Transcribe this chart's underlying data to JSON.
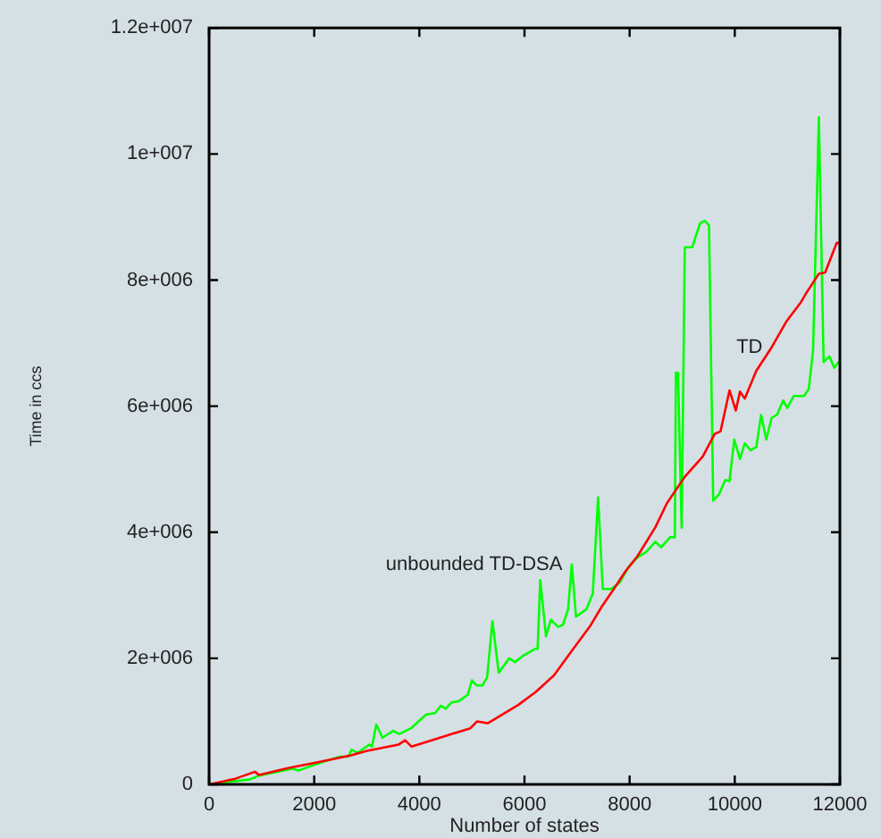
{
  "chart_data": {
    "type": "line",
    "xlabel": "Number of states",
    "ylabel": "Time in ccs",
    "xlim": [
      0,
      12000
    ],
    "xticks": [
      0,
      2000,
      4000,
      6000,
      8000,
      10000,
      12000
    ],
    "ylim": [
      0,
      12000000
    ],
    "yticks": [
      0,
      {
        "value": 2000000,
        "label": "2e+006"
      },
      {
        "value": 4000000,
        "label": "4e+006"
      },
      {
        "value": 6000000,
        "label": "6e+006"
      },
      {
        "value": 8000000,
        "label": "8e+006"
      },
      {
        "value": 10000000,
        "label": "1e+007"
      },
      {
        "value": 12000000,
        "label": "1.2e+007"
      }
    ],
    "legend": false,
    "series": [
      {
        "name": "TD",
        "color": "#ff0000",
        "x": [
          0,
          500,
          870,
          950,
          1500,
          2000,
          2700,
          3000,
          3600,
          3730,
          3850,
          4500,
          4970,
          5100,
          5300,
          5880,
          6220,
          6560,
          6900,
          7240,
          7470,
          7700,
          7920,
          8150,
          8490,
          8710,
          9050,
          9390,
          9620,
          9730,
          9900,
          10020,
          10100,
          10190,
          10410,
          10700,
          10980,
          11260,
          11380,
          11600,
          11720,
          11940,
          12000
        ],
        "values": [
          0,
          90000,
          200000,
          150000,
          260000,
          340000,
          460000,
          530000,
          630000,
          700000,
          600000,
          770000,
          890000,
          1000000,
          970000,
          1260000,
          1470000,
          1730000,
          2120000,
          2500000,
          2820000,
          3100000,
          3380000,
          3620000,
          4080000,
          4460000,
          4880000,
          5200000,
          5560000,
          5600000,
          6250000,
          5930000,
          6230000,
          6120000,
          6560000,
          6930000,
          7340000,
          7650000,
          7820000,
          8100000,
          8120000,
          8590000,
          8590000
        ]
      },
      {
        "name": "unbounded TD-DSA",
        "color": "#00ff00",
        "x": [
          0,
          780,
          950,
          1580,
          1700,
          2000,
          2480,
          2650,
          2710,
          2820,
          3050,
          3100,
          3180,
          3300,
          3500,
          3620,
          3840,
          4130,
          4300,
          4410,
          4500,
          4610,
          4750,
          4920,
          5000,
          5090,
          5200,
          5290,
          5390,
          5510,
          5710,
          5820,
          5990,
          6200,
          6250,
          6300,
          6410,
          6500,
          6640,
          6730,
          6830,
          6900,
          6980,
          7180,
          7300,
          7400,
          7490,
          7650,
          7810,
          7980,
          8150,
          8320,
          8490,
          8600,
          8770,
          8860,
          8880,
          8920,
          8990,
          9050,
          9190,
          9340,
          9430,
          9510,
          9590,
          9700,
          9820,
          9900,
          9990,
          10100,
          10190,
          10300,
          10410,
          10500,
          10600,
          10700,
          10810,
          10920,
          11000,
          11120,
          11320,
          11410,
          11490,
          11600,
          11690,
          11800,
          11890,
          11980
        ],
        "values": [
          0,
          80000,
          140000,
          250000,
          220000,
          310000,
          440000,
          440000,
          550000,
          500000,
          630000,
          600000,
          950000,
          740000,
          850000,
          800000,
          890000,
          1110000,
          1130000,
          1250000,
          1200000,
          1300000,
          1320000,
          1420000,
          1650000,
          1570000,
          1570000,
          1700000,
          2590000,
          1770000,
          2000000,
          1940000,
          2050000,
          2150000,
          2150000,
          3240000,
          2350000,
          2610000,
          2500000,
          2530000,
          2780000,
          3490000,
          2660000,
          2780000,
          3030000,
          4550000,
          3100000,
          3100000,
          3200000,
          3450000,
          3600000,
          3690000,
          3850000,
          3760000,
          3920000,
          3920000,
          6530000,
          6530000,
          4070000,
          8520000,
          8520000,
          8900000,
          8940000,
          8870000,
          4500000,
          4600000,
          4830000,
          4810000,
          5470000,
          5160000,
          5410000,
          5300000,
          5350000,
          5860000,
          5470000,
          5810000,
          5870000,
          6090000,
          5970000,
          6160000,
          6160000,
          6280000,
          6890000,
          10580000,
          6700000,
          6790000,
          6610000,
          6700000
        ]
      }
    ]
  }
}
